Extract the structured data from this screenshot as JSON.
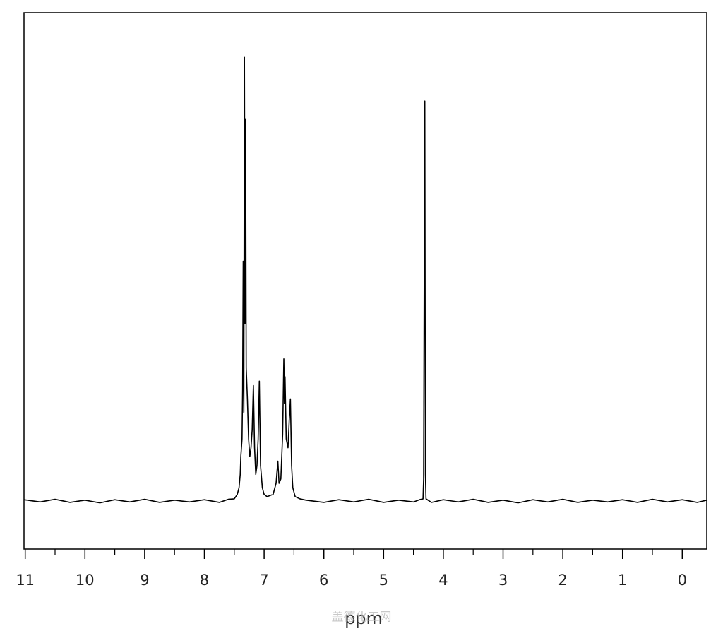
{
  "chart_data": {
    "type": "line",
    "xlabel": "ppm",
    "watermark": "盖德化工网",
    "color": "#000000",
    "x": [
      11.02,
      10.75,
      10.5,
      10.25,
      10,
      9.75,
      9.5,
      9.25,
      9,
      8.75,
      8.5,
      8.25,
      8,
      7.75,
      7.6,
      7.5,
      7.45,
      7.42,
      7.4,
      7.39,
      7.37,
      7.36,
      7.35,
      7.34,
      7.33,
      7.32,
      7.31,
      7.3,
      7.28,
      7.26,
      7.24,
      7.22,
      7.2,
      7.18,
      7.16,
      7.14,
      7.12,
      7.1,
      7.08,
      7.06,
      7.03,
      7,
      6.95,
      6.85,
      6.8,
      6.77,
      6.75,
      6.72,
      6.69,
      6.67,
      6.66,
      6.65,
      6.63,
      6.6,
      6.58,
      6.56,
      6.54,
      6.52,
      6.48,
      6.4,
      6.3,
      6,
      5.75,
      5.5,
      5.25,
      5,
      4.75,
      4.5,
      4.4,
      4.34,
      4.33,
      4.32,
      4.31,
      4.3,
      4.29,
      4.2,
      4,
      3.75,
      3.5,
      3.25,
      3,
      2.75,
      2.5,
      2.25,
      2,
      1.75,
      1.5,
      1.25,
      1,
      0.75,
      0.5,
      0.25,
      0,
      -0.25,
      -0.41
    ],
    "values": [
      0.3,
      -0.2,
      0.4,
      -0.3,
      0.2,
      -0.4,
      0.3,
      -0.2,
      0.4,
      -0.3,
      0.2,
      -0.2,
      0.3,
      -0.3,
      0.4,
      0.5,
      1.5,
      3,
      6,
      10,
      14,
      25,
      54,
      20,
      100,
      40,
      86,
      30,
      23,
      14,
      10,
      12,
      16,
      26,
      12,
      6,
      8,
      14,
      27,
      8,
      3,
      1.5,
      1,
      1.5,
      4,
      9,
      4,
      5,
      15,
      32,
      22,
      28,
      14,
      12,
      18,
      23,
      8,
      3,
      1,
      0.5,
      0.2,
      -0.3,
      0.3,
      -0.2,
      0.4,
      -0.3,
      0.2,
      -0.2,
      0.3,
      0.5,
      5,
      50,
      90,
      6,
      0.5,
      -0.3,
      0.3,
      -0.2,
      0.4,
      -0.3,
      0.2,
      -0.4,
      0.3,
      -0.2,
      0.4,
      -0.3,
      0.2,
      -0.2,
      0.3,
      -0.3,
      0.4,
      -0.2,
      0.3,
      -0.3,
      0.2
    ],
    "xlim": [
      11.02,
      -0.41
    ],
    "ylim": [
      -10.8,
      109.9
    ],
    "xticks": [
      11,
      10,
      9,
      8,
      7,
      6,
      5,
      4,
      3,
      2,
      1,
      0
    ],
    "xminorticks": [
      10.5,
      9.5,
      8.5,
      7.5,
      6.5,
      5.5,
      4.5,
      3.5,
      2.5,
      1.5,
      0.5
    ]
  }
}
